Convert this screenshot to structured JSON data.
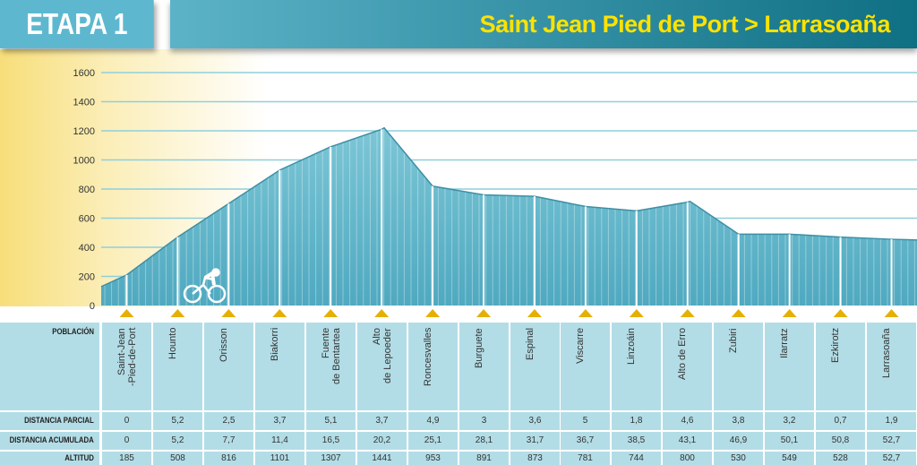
{
  "header": {
    "stage": "ETAPA 1",
    "route": "Saint Jean Pied de Port > Larrasoaña"
  },
  "colors": {
    "accent_title": "#ffe200",
    "table_bg": "#b3dde6",
    "profile": "#6cbccf"
  },
  "table": {
    "labels": {
      "poblacion": "POBLACIÓN",
      "parcial": "DISTANCIA PARCIAL",
      "acumulada": "DISTANCIA ACUMULADA",
      "altitud": "ALTITUD"
    },
    "stops": [
      {
        "name": "Saint-Jean\n-Pied-de-Port",
        "parcial": "0",
        "acumulada": "0",
        "altitud": "185"
      },
      {
        "name": "Hounto",
        "parcial": "5,2",
        "acumulada": "5,2",
        "altitud": "508"
      },
      {
        "name": "Orisson",
        "parcial": "2,5",
        "acumulada": "7,7",
        "altitud": "816"
      },
      {
        "name": "Biakorri",
        "parcial": "3,7",
        "acumulada": "11,4",
        "altitud": "1101"
      },
      {
        "name": "Fuente\nde Bentartea",
        "parcial": "5,1",
        "acumulada": "16,5",
        "altitud": "1307"
      },
      {
        "name": "Alto\nde Lepoeder",
        "parcial": "3,7",
        "acumulada": "20,2",
        "altitud": "1441"
      },
      {
        "name": "Roncesvalles",
        "parcial": "4,9",
        "acumulada": "25,1",
        "altitud": "953"
      },
      {
        "name": "Burguete",
        "parcial": "3",
        "acumulada": "28,1",
        "altitud": "891"
      },
      {
        "name": "Espinal",
        "parcial": "3,6",
        "acumulada": "31,7",
        "altitud": "873"
      },
      {
        "name": "Viscarre",
        "parcial": "5",
        "acumulada": "36,7",
        "altitud": "781"
      },
      {
        "name": "Linzoáin",
        "parcial": "1,8",
        "acumulada": "38,5",
        "altitud": "744"
      },
      {
        "name": "Alto de Erro",
        "parcial": "4,6",
        "acumulada": "43,1",
        "altitud": "800"
      },
      {
        "name": "Zubiri",
        "parcial": "3,8",
        "acumulada": "46,9",
        "altitud": "530"
      },
      {
        "name": "Ilarratz",
        "parcial": "3,2",
        "acumulada": "50,1",
        "altitud": "549"
      },
      {
        "name": "Ezkirotz",
        "parcial": "0,7",
        "acumulada": "50,8",
        "altitud": "528"
      },
      {
        "name": "Larrasoaña",
        "parcial": "1,9",
        "acumulada": "52,7",
        "altitud": "52,7"
      }
    ]
  },
  "chart_data": {
    "type": "area",
    "title": "Saint Jean Pied de Port > Larrasoaña",
    "ylabel": "",
    "xlabel": "",
    "ylim": [
      0,
      1600
    ],
    "yticks": [
      "0",
      "200",
      "400",
      "600",
      "800",
      "1000",
      "1200",
      "1400",
      "1600"
    ],
    "profile_index": [
      -0.5,
      0,
      1,
      2,
      3,
      4,
      5,
      5.05,
      6,
      7,
      8,
      9,
      10,
      11,
      11.05,
      12,
      13,
      14,
      15,
      15.5
    ],
    "profile_elev": [
      130,
      210,
      470,
      700,
      930,
      1090,
      1210,
      1220,
      820,
      760,
      750,
      680,
      650,
      710,
      715,
      490,
      490,
      470,
      455,
      450
    ]
  }
}
